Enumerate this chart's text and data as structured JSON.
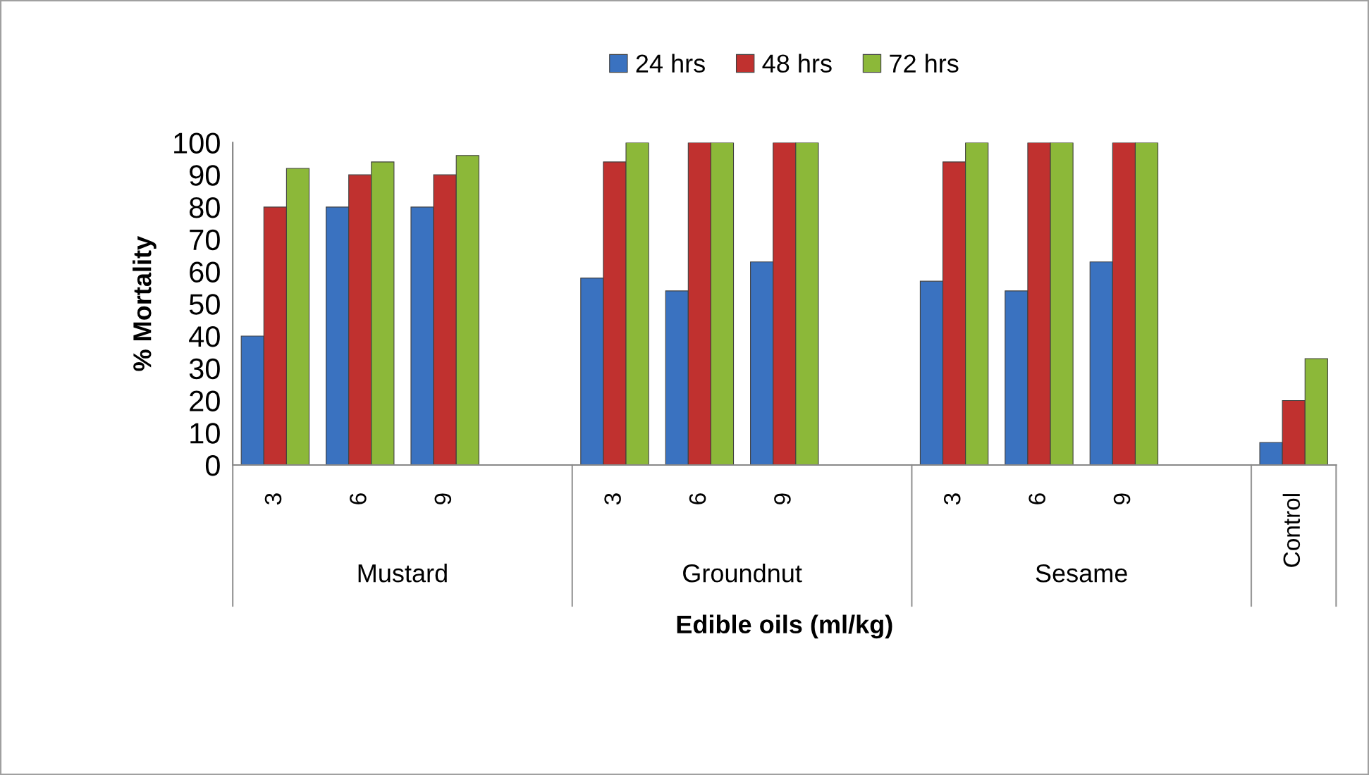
{
  "chart_data": {
    "type": "bar",
    "xlabel": "Edible oils (ml/kg)",
    "ylabel": "% Mortality",
    "categories": [
      "3",
      "6",
      "9",
      null,
      "3",
      "6",
      "9",
      null,
      "3",
      "6",
      "9",
      null,
      "Control"
    ],
    "annotations": [
      "Mustard",
      "Groundnut",
      "Sesame"
    ],
    "series": [
      {
        "name": "24 hrs",
        "color": "#3a72c0",
        "values": [
          40,
          80,
          80,
          null,
          58,
          54,
          63,
          null,
          57,
          54,
          63,
          null,
          7
        ]
      },
      {
        "name": "48 hrs",
        "color": "#c0312f",
        "values": [
          80,
          90,
          90,
          null,
          94,
          100,
          100,
          null,
          94,
          100,
          100,
          null,
          20
        ]
      },
      {
        "name": "72 hrs",
        "color": "#8cb839",
        "values": [
          92,
          94,
          96,
          null,
          100,
          100,
          100,
          null,
          100,
          100,
          100,
          null,
          33
        ]
      }
    ],
    "ylim": [
      0,
      100
    ],
    "yticks": [
      0,
      10,
      20,
      30,
      40,
      50,
      60,
      70,
      80,
      90,
      100
    ],
    "grid": false,
    "legend": "top"
  }
}
